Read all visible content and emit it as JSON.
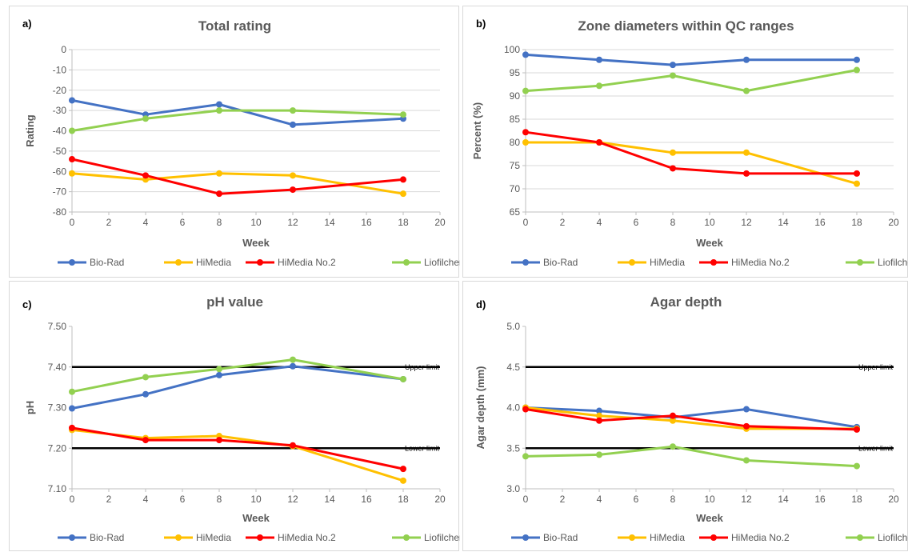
{
  "series_colors": {
    "Bio-Rad": "#4472c4",
    "HiMedia": "#ffc000",
    "HiMedia No.2": "#ff0000",
    "Liofilchem": "#92d050"
  },
  "chart_data": [
    {
      "panel_label": "a)",
      "type": "line",
      "title": "Total rating",
      "xlabel": "Week",
      "ylabel": "Rating",
      "xlim": [
        0,
        20
      ],
      "xticks": [
        0,
        2,
        4,
        6,
        8,
        10,
        12,
        14,
        16,
        18,
        20
      ],
      "ylim": [
        -80,
        0
      ],
      "yticks": [
        0,
        -10,
        -20,
        -30,
        -40,
        -50,
        -60,
        -70,
        -80
      ],
      "ytick_decimals": 0,
      "grid": true,
      "legend": "bottom",
      "x": [
        0,
        4,
        8,
        12,
        18
      ],
      "series": [
        {
          "name": "Bio-Rad",
          "values": [
            -25,
            -32,
            -27,
            -37,
            -34
          ]
        },
        {
          "name": "HiMedia",
          "values": [
            -61,
            -64,
            -61,
            -62,
            -71
          ]
        },
        {
          "name": "HiMedia No.2",
          "values": [
            -54,
            -62,
            -71,
            -69,
            -64
          ]
        },
        {
          "name": "Liofilchem",
          "values": [
            -40,
            -34,
            -30,
            -30,
            -32
          ]
        }
      ],
      "reference_lines": []
    },
    {
      "panel_label": "b)",
      "type": "line",
      "title": "Zone diameters within QC ranges",
      "xlabel": "Week",
      "ylabel": "Percent (%)",
      "xlim": [
        0,
        20
      ],
      "xticks": [
        0,
        2,
        4,
        6,
        8,
        10,
        12,
        14,
        16,
        18,
        20
      ],
      "ylim": [
        65,
        100
      ],
      "yticks": [
        100,
        95,
        90,
        85,
        80,
        75,
        70,
        65
      ],
      "ytick_decimals": 0,
      "grid": true,
      "legend": "bottom",
      "x": [
        0,
        4,
        8,
        12,
        18
      ],
      "series": [
        {
          "name": "Bio-Rad",
          "values": [
            98.9,
            97.8,
            96.7,
            97.8,
            97.8
          ]
        },
        {
          "name": "HiMedia",
          "values": [
            80.0,
            80.0,
            77.8,
            77.8,
            71.1
          ]
        },
        {
          "name": "HiMedia No.2",
          "values": [
            82.2,
            80.0,
            74.4,
            73.3,
            73.3
          ]
        },
        {
          "name": "Liofilchem",
          "values": [
            91.1,
            92.2,
            94.4,
            91.1,
            95.6
          ]
        }
      ],
      "reference_lines": []
    },
    {
      "panel_label": "c)",
      "type": "line",
      "title": "pH value",
      "xlabel": "Week",
      "ylabel": "pH",
      "xlim": [
        0,
        20
      ],
      "xticks": [
        0,
        2,
        4,
        6,
        8,
        10,
        12,
        14,
        16,
        18,
        20
      ],
      "ylim": [
        7.1,
        7.5
      ],
      "yticks": [
        7.5,
        7.4,
        7.3,
        7.2,
        7.1
      ],
      "ytick_decimals": 2,
      "grid": false,
      "legend": "bottom",
      "x": [
        0,
        4,
        8,
        12,
        18
      ],
      "series": [
        {
          "name": "Bio-Rad",
          "values": [
            7.298,
            7.333,
            7.38,
            7.402,
            7.37
          ]
        },
        {
          "name": "HiMedia",
          "values": [
            7.245,
            7.225,
            7.23,
            7.205,
            7.12
          ]
        },
        {
          "name": "HiMedia No.2",
          "values": [
            7.25,
            7.22,
            7.22,
            7.207,
            7.149
          ]
        },
        {
          "name": "Liofilchem",
          "values": [
            7.339,
            7.375,
            7.395,
            7.418,
            7.37
          ]
        }
      ],
      "reference_lines": [
        {
          "label": "Upper limit",
          "value": 7.4
        },
        {
          "label": "Lower limit",
          "value": 7.2
        }
      ]
    },
    {
      "panel_label": "d)",
      "type": "line",
      "title": "Agar depth",
      "xlabel": "Week",
      "ylabel": "Agar depth (mm)",
      "xlim": [
        0,
        20
      ],
      "xticks": [
        0,
        2,
        4,
        6,
        8,
        10,
        12,
        14,
        16,
        18,
        20
      ],
      "ylim": [
        3.0,
        5.0
      ],
      "yticks": [
        5.0,
        4.5,
        4.0,
        3.5,
        3.0
      ],
      "ytick_decimals": 1,
      "grid": false,
      "legend": "bottom",
      "x": [
        0,
        4,
        8,
        12,
        18
      ],
      "series": [
        {
          "name": "Bio-Rad",
          "values": [
            4.0,
            3.96,
            3.88,
            3.98,
            3.76
          ]
        },
        {
          "name": "HiMedia",
          "values": [
            4.0,
            3.9,
            3.84,
            3.74,
            3.74
          ]
        },
        {
          "name": "HiMedia No.2",
          "values": [
            3.98,
            3.84,
            3.9,
            3.77,
            3.73
          ]
        },
        {
          "name": "Liofilchem",
          "values": [
            3.4,
            3.42,
            3.52,
            3.35,
            3.28
          ]
        }
      ],
      "reference_lines": [
        {
          "label": "Upper limit",
          "value": 4.5
        },
        {
          "label": "Lower limit",
          "value": 3.5
        }
      ]
    }
  ]
}
